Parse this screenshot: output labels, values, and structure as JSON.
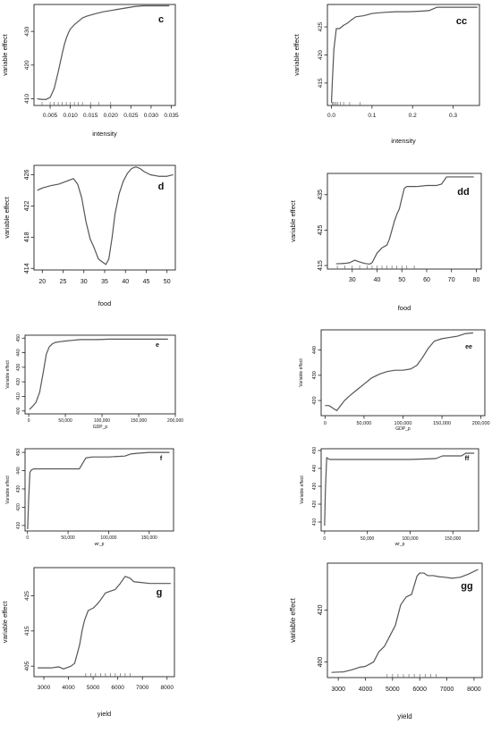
{
  "chart_data": [
    {
      "type": "line",
      "panel": "c",
      "xlabel": "intensity",
      "ylabel": "variable effect",
      "xlim": [
        0.001,
        0.036
      ],
      "ylim": [
        408,
        438
      ],
      "xticks": [
        0.005,
        0.01,
        0.015,
        0.02,
        0.025,
        0.03,
        0.035
      ],
      "xtick_labels": [
        "0.005",
        "0.010",
        "0.015",
        "0.020",
        "0.025",
        "0.030",
        "0.035"
      ],
      "yticks": [
        410,
        420,
        430
      ],
      "ytick_labels": [
        "410",
        "420",
        "430"
      ],
      "rug": [
        0.003,
        0.005,
        0.006,
        0.007,
        0.008,
        0.009,
        0.01,
        0.011,
        0.012,
        0.013,
        0.015,
        0.017,
        0.02
      ],
      "x": [
        0.0018,
        0.003,
        0.004,
        0.005,
        0.006,
        0.007,
        0.008,
        0.0085,
        0.009,
        0.0095,
        0.01,
        0.011,
        0.012,
        0.013,
        0.014,
        0.016,
        0.018,
        0.02,
        0.022,
        0.024,
        0.026,
        0.028,
        0.03,
        0.0345
      ],
      "y": [
        410.0,
        409.8,
        409.8,
        410.4,
        413.0,
        418.0,
        423.5,
        426.0,
        428.0,
        429.5,
        430.7,
        432.0,
        433.0,
        434.0,
        434.5,
        435.2,
        435.8,
        436.2,
        436.6,
        437.0,
        437.4,
        437.6,
        437.6,
        437.6
      ]
    },
    {
      "type": "line",
      "panel": "cc",
      "xlabel": "intensity",
      "ylabel": "variable effect",
      "xlim": [
        -0.01,
        0.365
      ],
      "ylim": [
        411,
        429
      ],
      "xticks": [
        0,
        0.1,
        0.2,
        0.3
      ],
      "xtick_labels": [
        "0.0",
        "0.1",
        "0.2",
        "0.3"
      ],
      "yticks": [
        415,
        420,
        425
      ],
      "ytick_labels": [
        "415",
        "420",
        "425"
      ],
      "rug": [
        0.002,
        0.005,
        0.008,
        0.012,
        0.016,
        0.022,
        0.03,
        0.045,
        0.07
      ],
      "x": [
        0.0,
        0.002,
        0.006,
        0.012,
        0.02,
        0.03,
        0.04,
        0.05,
        0.06,
        0.08,
        0.1,
        0.13,
        0.16,
        0.19,
        0.22,
        0.24,
        0.26,
        0.3,
        0.36
      ],
      "y": [
        411.5,
        415.0,
        421.0,
        424.7,
        424.7,
        425.3,
        425.7,
        426.3,
        426.8,
        427.0,
        427.4,
        427.6,
        427.7,
        427.7,
        427.8,
        427.9,
        428.5,
        428.5,
        428.5
      ]
    },
    {
      "type": "line",
      "panel": "d",
      "xlabel": "food",
      "ylabel": "variable effect",
      "xlim": [
        18,
        52
      ],
      "ylim": [
        413.8,
        427.2
      ],
      "xticks": [
        20,
        25,
        30,
        35,
        40,
        45,
        50
      ],
      "xtick_labels": [
        "20",
        "25",
        "30",
        "35",
        "40",
        "45",
        "50"
      ],
      "yticks": [
        414,
        418,
        422,
        426
      ],
      "ytick_labels": [
        "414",
        "418",
        "422",
        "426"
      ],
      "rug": [],
      "x": [
        18.8,
        20,
        22,
        24,
        26,
        27.5,
        28.5,
        29.5,
        30.5,
        31.5,
        32.5,
        33.5,
        34.5,
        35.3,
        36,
        36.8,
        37.5,
        38.5,
        39.5,
        40.5,
        41.5,
        42.5,
        43.5,
        44.5,
        46,
        48,
        50,
        51.5
      ],
      "y": [
        424.0,
        424.3,
        424.6,
        424.8,
        425.2,
        425.5,
        424.8,
        423.0,
        420.0,
        417.8,
        416.6,
        415.2,
        414.8,
        414.5,
        415.2,
        418.0,
        421.0,
        423.6,
        425.2,
        426.2,
        426.8,
        427.0,
        426.8,
        426.4,
        426.0,
        425.8,
        425.8,
        426.0
      ]
    },
    {
      "type": "line",
      "panel": "dd",
      "xlabel": "food",
      "ylabel": "variable effect",
      "xlim": [
        20,
        82
      ],
      "ylim": [
        414,
        441
      ],
      "xticks": [
        30,
        40,
        50,
        60,
        70,
        80
      ],
      "xtick_labels": [
        "30",
        "40",
        "50",
        "60",
        "70",
        "80"
      ],
      "yticks": [
        415,
        425,
        435
      ],
      "ytick_labels": [
        "415",
        "425",
        "435"
      ],
      "rug": [
        24,
        27,
        30,
        33,
        36,
        38,
        40,
        42,
        44,
        46,
        48,
        50,
        52,
        55
      ],
      "x": [
        23.5,
        27,
        29,
        31,
        33,
        35,
        37,
        38,
        40,
        42,
        44,
        45,
        46,
        47,
        48,
        49,
        50,
        51,
        52,
        54,
        56,
        60,
        64,
        66,
        68,
        70,
        79
      ],
      "y": [
        415.5,
        415.6,
        415.8,
        416.5,
        416.0,
        415.6,
        415.4,
        415.8,
        418.5,
        420.0,
        420.8,
        422.5,
        425.0,
        427.5,
        429.5,
        431.0,
        434.0,
        436.8,
        437.3,
        437.3,
        437.3,
        437.6,
        437.6,
        438.0,
        440.0,
        440.0,
        440.0
      ]
    },
    {
      "type": "line",
      "panel": "e",
      "xlabel": "GDP_p",
      "ylabel": "Variable effect",
      "xlim": [
        -5000,
        200000
      ],
      "ylim": [
        398,
        452
      ],
      "xticks": [
        0,
        50000,
        100000,
        150000,
        200000
      ],
      "xtick_labels": [
        "0",
        "50,000",
        "100,000",
        "150,000",
        "200,000"
      ],
      "yticks": [
        400,
        410,
        420,
        430,
        440,
        450
      ],
      "ytick_labels": [
        "400",
        "410",
        "420",
        "430",
        "440",
        "450"
      ],
      "rug": [],
      "x": [
        1000,
        5000,
        10000,
        15000,
        20000,
        24000,
        28000,
        32000,
        36000,
        42000,
        50000,
        60000,
        70000,
        80000,
        95000,
        110000,
        130000,
        150000,
        170000,
        190000
      ],
      "y": [
        401,
        403,
        406,
        413,
        427,
        439,
        444,
        446,
        447,
        447.5,
        448,
        448.5,
        449,
        449,
        449,
        449.3,
        449.3,
        449.3,
        449.3,
        449.3
      ]
    },
    {
      "type": "line",
      "panel": "ee",
      "xlabel": "GDP_p",
      "ylabel": "Variable effect",
      "xlim": [
        -5000,
        205000
      ],
      "ylim": [
        414,
        448
      ],
      "xticks": [
        0,
        50000,
        100000,
        150000,
        200000
      ],
      "xtick_labels": [
        "0",
        "50,000",
        "100,000",
        "150,000",
        "200,000"
      ],
      "yticks": [
        420,
        430,
        440
      ],
      "ytick_labels": [
        "420",
        "430",
        "440"
      ],
      "rug": [],
      "x": [
        0,
        5000,
        10000,
        15000,
        20000,
        25000,
        32000,
        40000,
        50000,
        60000,
        70000,
        80000,
        90000,
        100000,
        110000,
        118000,
        125000,
        132000,
        140000,
        150000,
        160000,
        170000,
        180000,
        190000
      ],
      "y": [
        418,
        418,
        417,
        416,
        418,
        420,
        422,
        424,
        426.5,
        429,
        430.5,
        431.5,
        432,
        432,
        432.5,
        434,
        437,
        440.5,
        443.5,
        444.5,
        445,
        445.5,
        446.5,
        446.8
      ]
    },
    {
      "type": "line",
      "panel": "f",
      "xlabel": "wr_p",
      "ylabel": "Variable effect",
      "xlim": [
        -3000,
        180000
      ],
      "ylim": [
        407,
        452
      ],
      "xticks": [
        0,
        50000,
        100000,
        150000
      ],
      "xtick_labels": [
        "0",
        "50,000",
        "100,000",
        "150,000"
      ],
      "yticks": [
        410,
        420,
        430,
        440,
        450
      ],
      "ytick_labels": [
        "410",
        "420",
        "430",
        "440",
        "450"
      ],
      "rug": [],
      "x": [
        200,
        1500,
        3000,
        5000,
        8000,
        15000,
        30000,
        50000,
        64000,
        68000,
        72000,
        80000,
        100000,
        120000,
        128000,
        135000,
        150000,
        160000,
        175000
      ],
      "y": [
        408,
        425,
        439,
        440.5,
        441,
        441,
        441,
        441,
        441,
        444,
        447,
        447.5,
        447.5,
        448,
        449.2,
        449.5,
        450,
        450,
        450
      ]
    },
    {
      "type": "line",
      "panel": "ff",
      "xlabel": "wr_p",
      "ylabel": "Variable effect",
      "xlim": [
        -4000,
        180000
      ],
      "ylim": [
        405,
        451
      ],
      "xticks": [
        0,
        50000,
        100000,
        150000
      ],
      "xtick_labels": [
        "0",
        "50,000",
        "100,000",
        "150,000"
      ],
      "yticks": [
        410,
        420,
        430,
        440,
        450
      ],
      "ytick_labels": [
        "410",
        "420",
        "430",
        "440",
        "450"
      ],
      "rug": [],
      "x": [
        0,
        1000,
        2500,
        4000,
        6000,
        10000,
        30000,
        60000,
        100000,
        130000,
        138000,
        145000,
        160000,
        165000,
        175000
      ],
      "y": [
        408,
        428,
        446,
        445.5,
        445,
        445,
        445,
        445,
        445,
        445.5,
        447,
        447,
        447,
        448.5,
        448.5
      ]
    },
    {
      "type": "line",
      "panel": "g",
      "xlabel": "yield",
      "ylabel": "variable effect",
      "xlim": [
        2600,
        8300
      ],
      "ylim": [
        402,
        433
      ],
      "xticks": [
        3000,
        4000,
        5000,
        6000,
        7000,
        8000
      ],
      "xtick_labels": [
        "3000",
        "4000",
        "5000",
        "6000",
        "7000",
        "8000"
      ],
      "yticks": [
        405,
        415,
        425
      ],
      "ytick_labels": [
        "405",
        "415",
        "425"
      ],
      "rug": [
        4700,
        4900,
        5100,
        5300,
        5500,
        5700,
        5900,
        6100,
        6300,
        6500
      ],
      "x": [
        2750,
        3300,
        3600,
        3800,
        4100,
        4250,
        4450,
        4550,
        4650,
        4800,
        5000,
        5150,
        5300,
        5500,
        5700,
        5900,
        6100,
        6300,
        6500,
        6650,
        6900,
        7300,
        7700,
        8150
      ],
      "y": [
        404.5,
        404.5,
        404.8,
        404.2,
        405.0,
        405.8,
        411.0,
        415.0,
        418.0,
        420.8,
        421.5,
        422.5,
        423.8,
        425.8,
        426.3,
        426.8,
        428.5,
        430.5,
        430.0,
        429.0,
        428.8,
        428.5,
        428.5,
        428.5
      ]
    },
    {
      "type": "line",
      "panel": "gg",
      "xlabel": "yield",
      "ylabel": "variable effect",
      "xlim": [
        2600,
        8300
      ],
      "ylim": [
        394,
        438
      ],
      "xticks": [
        3000,
        4000,
        5000,
        6000,
        7000,
        8000
      ],
      "xtick_labels": [
        "3000",
        "4000",
        "5000",
        "6000",
        "7000",
        "8000"
      ],
      "yticks": [
        400,
        420
      ],
      "ytick_labels": [
        "400",
        "420"
      ],
      "rug": [
        4800,
        5000,
        5200,
        5400,
        5600,
        5800,
        6000,
        6200,
        6400,
        6600
      ],
      "x": [
        2750,
        3200,
        3500,
        3800,
        4000,
        4300,
        4500,
        4700,
        4900,
        5100,
        5300,
        5500,
        5700,
        5900,
        6000,
        6150,
        6300,
        6500,
        6700,
        6900,
        7200,
        7500,
        7800,
        8150
      ],
      "y": [
        396,
        396.2,
        397,
        398,
        398.3,
        400,
        404,
        406,
        410,
        414,
        422,
        425,
        426,
        433,
        434.2,
        434.2,
        433.2,
        433.2,
        432.8,
        432.6,
        432.2,
        432.6,
        433.8,
        435.6
      ]
    }
  ]
}
